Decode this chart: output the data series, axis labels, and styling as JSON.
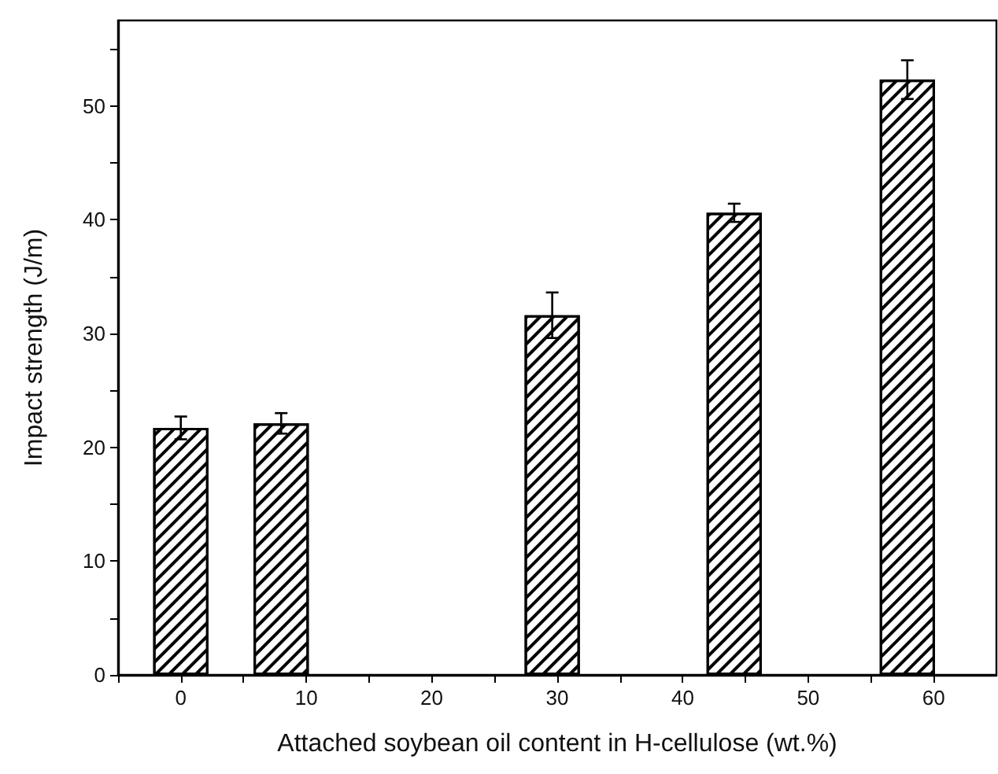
{
  "chart_data": {
    "type": "bar",
    "xlabel": "Attached soybean oil content in H-cellulose (wt.%)",
    "ylabel": "Impact strength (J/m)",
    "x": [
      0,
      8,
      29.6,
      44.1,
      57.9
    ],
    "values": [
      21.7,
      22.1,
      31.6,
      40.6,
      52.3
    ],
    "errors": [
      1.0,
      0.9,
      2.0,
      0.8,
      1.7
    ],
    "color": "#000000",
    "xlim": [
      -5,
      65
    ],
    "xticks": [
      {
        "value": -5,
        "label": null
      },
      0,
      {
        "value": 5,
        "label": null
      },
      10,
      {
        "value": 15,
        "label": null
      },
      20,
      {
        "value": 25,
        "label": null
      },
      30,
      {
        "value": 35,
        "label": null
      },
      40,
      {
        "value": 45,
        "label": null
      },
      50,
      {
        "value": 55,
        "label": null
      },
      60
    ],
    "ylim": [
      0,
      57.5
    ],
    "yticks": [
      0,
      {
        "value": 5,
        "label": null
      },
      10,
      {
        "value": 15,
        "label": null
      },
      20,
      {
        "value": 25,
        "label": null
      },
      30,
      {
        "value": 35,
        "label": null
      },
      40,
      {
        "value": 45,
        "label": null
      },
      50,
      {
        "value": 55,
        "label": null
      }
    ],
    "grid": false
  }
}
